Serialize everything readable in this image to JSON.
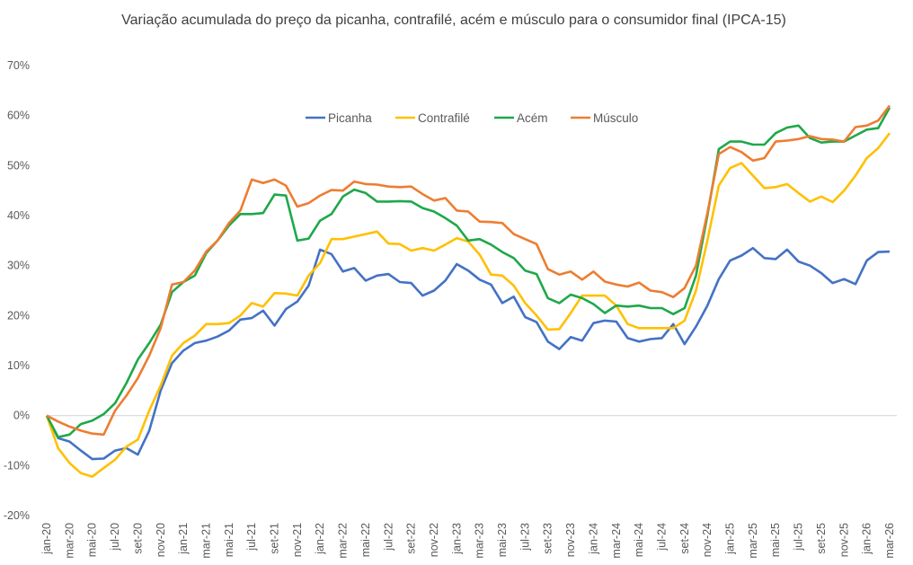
{
  "chart_data": {
    "type": "line",
    "title": "Variação acumulada do preço da picanha, contrafilé, acém e músculo para o consumidor final (IPCA-15)",
    "xlabel": "",
    "ylabel": "",
    "ylim": [
      -20,
      70
    ],
    "yticks": [
      -20,
      -10,
      0,
      10,
      20,
      30,
      40,
      50,
      60,
      70
    ],
    "ytick_format": "percent",
    "grid": false,
    "zero_line": true,
    "legend_position": "top-center",
    "x": [
      "jan-20",
      "fev-20",
      "mar-20",
      "abr-20",
      "mai-20",
      "jun-20",
      "jul-20",
      "ago-20",
      "set-20",
      "out-20",
      "nov-20",
      "dez-20",
      "jan-21",
      "fev-21",
      "mar-21",
      "abr-21",
      "mai-21",
      "jun-21",
      "jul-21",
      "ago-21",
      "set-21",
      "out-21",
      "nov-21",
      "dez-21",
      "jan-22",
      "fev-22",
      "mar-22",
      "abr-22",
      "mai-22",
      "jun-22",
      "jul-22",
      "ago-22",
      "set-22",
      "out-22",
      "nov-22",
      "dez-22",
      "jan-23",
      "fev-23",
      "mar-23",
      "abr-23",
      "mai-23",
      "jun-23",
      "jul-23",
      "ago-23",
      "set-23",
      "out-23",
      "nov-23",
      "dez-23",
      "jan-24",
      "fev-24",
      "mar-24",
      "abr-24",
      "mai-24",
      "jun-24",
      "jul-24",
      "ago-24",
      "set-24",
      "out-24",
      "nov-24",
      "dez-24",
      "jan-25",
      "fev-25",
      "mar-25",
      "abr-25",
      "mai-25",
      "jun-25",
      "jul-25",
      "ago-25",
      "set-25",
      "out-25",
      "nov-25",
      "dez-25",
      "jan-26",
      "fev-26",
      "mar-26"
    ],
    "xtick_labels": [
      "jan-20",
      "mar-20",
      "mai-20",
      "jul-20",
      "set-20",
      "nov-20",
      "jan-21",
      "mar-21",
      "mai-21",
      "jul-21",
      "set-21",
      "nov-21",
      "jan-22",
      "mar-22",
      "mai-22",
      "jul-22",
      "set-22",
      "nov-22",
      "jan-23",
      "mar-23",
      "mai-23",
      "jul-23",
      "set-23",
      "nov-23",
      "jan-24",
      "mar-24",
      "mai-24",
      "jul-24",
      "set-24",
      "nov-24",
      "jan-25",
      "mar-25",
      "mai-25",
      "jul-25",
      "set-25",
      "nov-25",
      "jan-26",
      "mar-26"
    ],
    "series": [
      {
        "name": "Picanha",
        "color": "#4472C4",
        "values": [
          0,
          -4.5,
          -5.2,
          -7,
          -8.7,
          -8.6,
          -7,
          -6.5,
          -7.8,
          -3,
          5,
          10.5,
          13,
          14.5,
          15,
          15.8,
          17,
          19.2,
          19.5,
          21,
          18,
          21.3,
          22.8,
          26,
          33.2,
          32.3,
          28.8,
          29.5,
          27,
          28,
          28.3,
          26.7,
          26.5,
          24,
          25,
          27,
          30.3,
          29,
          27.2,
          26.2,
          22.5,
          23.8,
          19.7,
          18.7,
          14.8,
          13.3,
          15.7,
          15,
          18.5,
          19,
          18.8,
          15.5,
          14.8,
          15.3,
          15.5,
          18.3,
          14.3,
          17.8,
          22,
          27.3,
          31,
          32,
          33.5,
          31.5,
          31.3,
          33.2,
          30.8,
          30,
          28.5,
          26.5,
          27.3,
          26.3,
          31,
          32.7,
          32.8
        ]
      },
      {
        "name": "Contrafilé",
        "color": "#FFC000",
        "values": [
          0,
          -6.5,
          -9.5,
          -11.5,
          -12.2,
          -10.5,
          -8.8,
          -6.2,
          -4.8,
          1,
          6,
          12,
          14.5,
          16,
          18.3,
          18.3,
          18.5,
          20,
          22.5,
          21.8,
          24.5,
          24.4,
          24,
          28,
          30.5,
          35.3,
          35.3,
          35.8,
          36.3,
          36.8,
          34.4,
          34.3,
          33,
          33.5,
          33,
          34.2,
          35.5,
          34.8,
          32.2,
          28.2,
          28,
          26,
          22.5,
          20,
          17.2,
          17.3,
          20.5,
          24,
          24,
          24,
          22,
          18.3,
          17.5,
          17.5,
          17.5,
          17.5,
          19,
          25,
          35,
          46,
          49.5,
          50.5,
          48,
          45.5,
          45.7,
          46.3,
          44.5,
          42.8,
          43.8,
          42.7,
          45,
          48,
          51.5,
          53.5,
          56.5
        ]
      },
      {
        "name": "Acém",
        "color": "#1FA84A",
        "values": [
          0,
          -4.3,
          -3.8,
          -1.7,
          -1,
          0.3,
          2.5,
          6.5,
          11.2,
          14.5,
          18.2,
          24.7,
          26.7,
          28,
          32.5,
          35,
          38,
          40.3,
          40.3,
          40.5,
          44.2,
          44,
          35,
          35.4,
          39,
          40.3,
          43.8,
          45.2,
          44.5,
          42.8,
          42.8,
          42.9,
          42.8,
          41.5,
          40.8,
          39.5,
          38,
          35,
          35.3,
          34.2,
          32.7,
          31.5,
          29,
          28.3,
          23.5,
          22.5,
          24.2,
          23.5,
          22.3,
          20.5,
          22,
          21.8,
          22,
          21.5,
          21.5,
          20.3,
          21.5,
          28,
          40,
          53.3,
          54.8,
          54.8,
          54.2,
          54.2,
          56.5,
          57.6,
          58,
          55.5,
          54.6,
          54.8,
          54.8,
          56,
          57.2,
          57.5,
          61.6
        ]
      },
      {
        "name": "Músculo",
        "color": "#ED7D31",
        "values": [
          0,
          -1.2,
          -2.2,
          -3,
          -3.6,
          -3.8,
          1,
          4,
          7.5,
          12,
          17.5,
          26.2,
          26.7,
          29,
          32.8,
          35,
          38.5,
          41,
          47.2,
          46.5,
          47.2,
          46,
          41.8,
          42.5,
          44,
          45.1,
          45,
          46.8,
          46.3,
          46.2,
          45.8,
          45.7,
          45.8,
          44.3,
          43,
          43.5,
          41,
          40.8,
          38.8,
          38.7,
          38.5,
          36.3,
          35.3,
          34.3,
          29.3,
          28.2,
          28.8,
          27.2,
          28.8,
          26.8,
          26.2,
          25.8,
          26.6,
          25,
          24.7,
          23.7,
          25.5,
          30,
          40.5,
          52.3,
          53.7,
          52.7,
          51,
          51.5,
          54.8,
          55,
          55.3,
          55.9,
          55.3,
          55.2,
          54.8,
          57.7,
          58,
          59,
          62
        ]
      }
    ]
  }
}
